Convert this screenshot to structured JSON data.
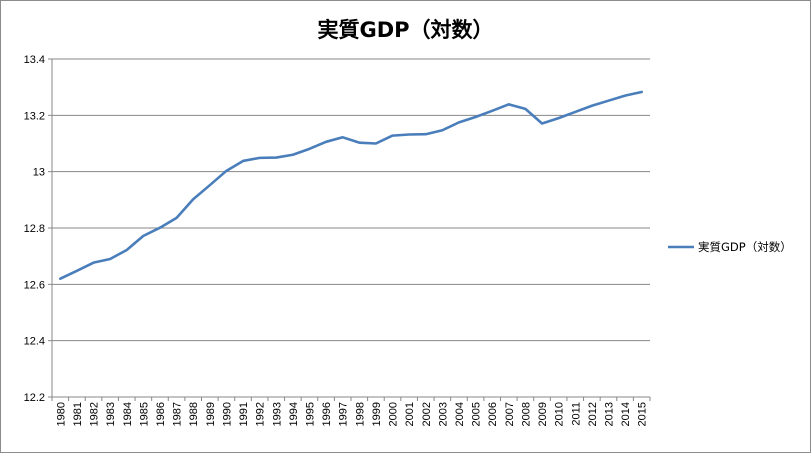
{
  "chart_data": {
    "type": "line",
    "title": "実質GDP（対数）",
    "xlabel": "",
    "ylabel": "",
    "x": [
      "1980",
      "1981",
      "1982",
      "1983",
      "1984",
      "1985",
      "1986",
      "1987",
      "1988",
      "1989",
      "1990",
      "1991",
      "1992",
      "1993",
      "1994",
      "1995",
      "1996",
      "1997",
      "1998",
      "1999",
      "2000",
      "2001",
      "2002",
      "2003",
      "2004",
      "2005",
      "2006",
      "2007",
      "2008",
      "2009",
      "2010",
      "2011",
      "2012",
      "2013",
      "2014",
      "2015"
    ],
    "series": [
      {
        "name": "実質GDP（対数）",
        "color": "#4a7ebb",
        "values": [
          12.62,
          12.648,
          12.677,
          12.69,
          12.722,
          12.772,
          12.801,
          12.836,
          12.902,
          12.952,
          13.003,
          13.038,
          13.049,
          13.05,
          13.06,
          13.081,
          13.106,
          13.122,
          13.103,
          13.1,
          13.128,
          13.132,
          13.133,
          13.147,
          13.175,
          13.194,
          13.216,
          13.239,
          13.223,
          13.171,
          13.19,
          13.212,
          13.234,
          13.252,
          13.27,
          13.283
        ]
      }
    ],
    "ylim": [
      12.2,
      13.4
    ],
    "yticks": [
      "12.2",
      "12.4",
      "12.6",
      "12.8",
      "13",
      "13.2",
      "13.4"
    ],
    "grid": true,
    "legend_position": "right"
  }
}
